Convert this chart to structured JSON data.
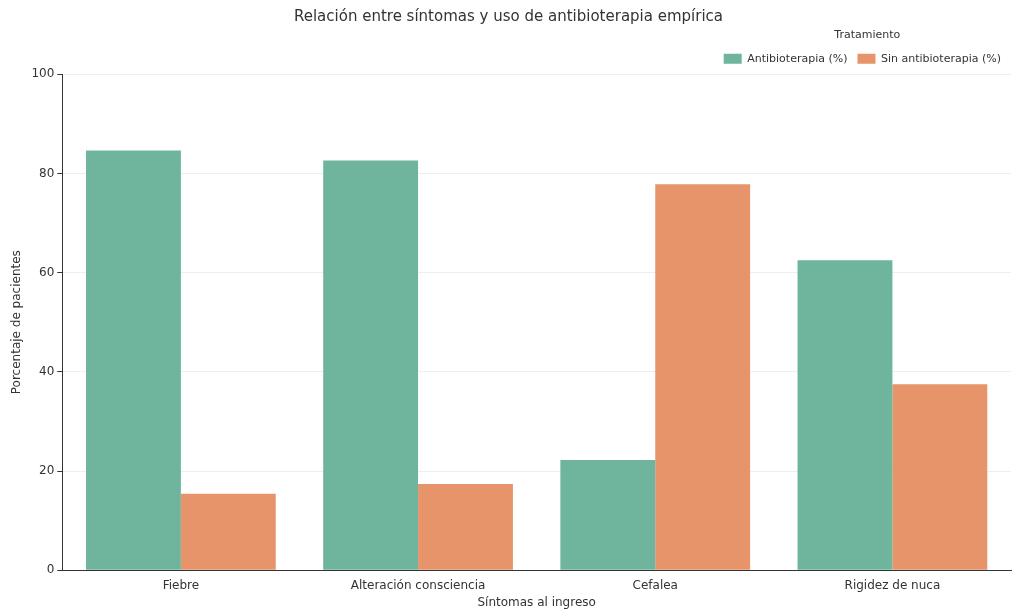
{
  "chart_data": {
    "type": "bar",
    "title": "Relación entre síntomas y uso de antibioterapia empírica",
    "xlabel": "Síntomas al ingreso",
    "ylabel": "Porcentaje de pacientes",
    "legend_title": "Tratamiento",
    "categories": [
      "Fiebre",
      "Alteración consciencia",
      "Cefalea",
      "Rigidez de nuca"
    ],
    "series": [
      {
        "name": "Antibioterapia (%)",
        "color": "#6fb59d",
        "values": [
          84.6,
          82.6,
          22.2,
          62.5
        ]
      },
      {
        "name": "Sin antibioterapia (%)",
        "color": "#e8946b",
        "values": [
          15.4,
          17.4,
          77.8,
          37.5
        ]
      }
    ],
    "ylim": [
      0,
      100
    ],
    "yticks": [
      0,
      20,
      40,
      60,
      80,
      100
    ],
    "grid": "y",
    "legend": "top right"
  }
}
